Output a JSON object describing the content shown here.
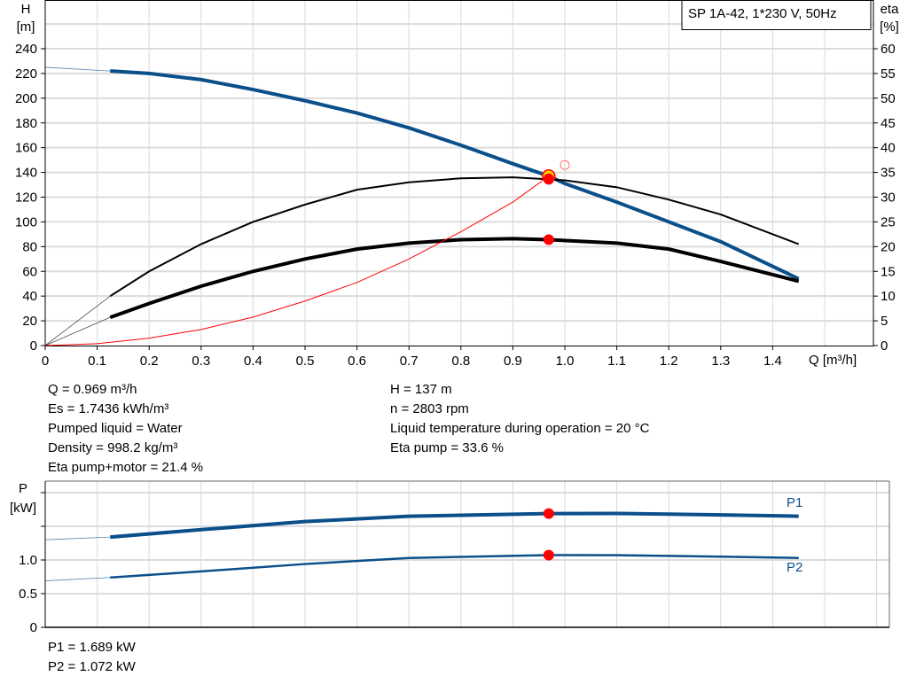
{
  "chart_data": [
    {
      "type": "line",
      "title": "SP 1A-42, 1*230 V, 50Hz",
      "xlabel": "Q [m³/h]",
      "ylabel": [
        "H",
        "[m]"
      ],
      "y2label": [
        "eta",
        "[%]"
      ],
      "xlim": [
        0,
        1.55
      ],
      "ylim": [
        0,
        240
      ],
      "y2lim": [
        0,
        60
      ],
      "xticks": [
        "0",
        "0.1",
        "0.2",
        "0.3",
        "0.4",
        "0.5",
        "0.6",
        "0.7",
        "0.8",
        "0.9",
        "1.0",
        "1.1",
        "1.2",
        "1.3",
        "1.4"
      ],
      "yticks": [
        "0",
        "20",
        "40",
        "60",
        "80",
        "100",
        "120",
        "140",
        "160",
        "180",
        "200",
        "220",
        "240"
      ],
      "y2ticks": [
        "0",
        "5",
        "10",
        "15",
        "20",
        "25",
        "30",
        "35",
        "40",
        "45",
        "50",
        "55",
        "60"
      ],
      "grid": true,
      "series": [
        {
          "id": "H",
          "axis": "left",
          "color": "#0b4f8a",
          "x": [
            0,
            0.125,
            0.2,
            0.3,
            0.4,
            0.5,
            0.6,
            0.7,
            0.8,
            0.9,
            0.969,
            1.0,
            1.1,
            1.2,
            1.3,
            1.45
          ],
          "values": [
            225,
            222,
            220,
            215,
            207,
            198,
            188,
            176,
            162,
            147,
            137,
            131,
            116,
            100,
            84,
            54
          ]
        },
        {
          "id": "eta_pump",
          "axis": "right",
          "color": "#000000",
          "x": [
            0,
            0.125,
            0.2,
            0.3,
            0.4,
            0.5,
            0.6,
            0.7,
            0.8,
            0.9,
            0.969,
            1.0,
            1.1,
            1.2,
            1.3,
            1.45
          ],
          "values": [
            0,
            10,
            15,
            20.5,
            25,
            28.5,
            31.5,
            33,
            33.8,
            34,
            33.6,
            33.4,
            32,
            29.5,
            26.5,
            20.5
          ]
        },
        {
          "id": "eta_pump_motor",
          "axis": "right",
          "color": "#000000",
          "x": [
            0,
            0.125,
            0.2,
            0.3,
            0.4,
            0.5,
            0.6,
            0.7,
            0.8,
            0.9,
            0.969,
            1.1,
            1.2,
            1.3,
            1.45
          ],
          "values": [
            0,
            5.7,
            8.5,
            12,
            15,
            17.5,
            19.5,
            20.7,
            21.4,
            21.6,
            21.4,
            20.7,
            19.5,
            17,
            13
          ]
        },
        {
          "id": "system",
          "axis": "left",
          "color": "#ff0000",
          "x": [
            0,
            0.1,
            0.2,
            0.3,
            0.4,
            0.5,
            0.6,
            0.7,
            0.8,
            0.9,
            0.969
          ],
          "values": [
            0,
            1.5,
            6,
            13,
            23,
            36,
            51,
            70,
            92,
            116,
            137
          ]
        }
      ],
      "points": [
        {
          "x": 0.969,
          "y": 137,
          "axis": "left",
          "kind": "duty"
        },
        {
          "x": 0.969,
          "y": 33.6,
          "axis": "right",
          "kind": "op"
        },
        {
          "x": 0.969,
          "y": 21.4,
          "axis": "right",
          "kind": "op"
        },
        {
          "x": 1.0,
          "y": 146,
          "axis": "left",
          "kind": "requested"
        }
      ]
    },
    {
      "type": "line",
      "ylabel": [
        "P",
        "[kW]"
      ],
      "xlim": [
        0,
        1.62
      ],
      "ylim": [
        0,
        2.2
      ],
      "yticks": [
        "0",
        "0.5",
        "1.0"
      ],
      "grid": true,
      "series": [
        {
          "name": "P1",
          "color": "#0b4f8a",
          "x": [
            0,
            0.125,
            0.3,
            0.5,
            0.7,
            0.969,
            1.1,
            1.3,
            1.45
          ],
          "values": [
            1.3,
            1.34,
            1.45,
            1.57,
            1.65,
            1.689,
            1.69,
            1.67,
            1.65
          ]
        },
        {
          "name": "P2",
          "color": "#0b4f8a",
          "x": [
            0,
            0.125,
            0.3,
            0.5,
            0.7,
            0.969,
            1.1,
            1.3,
            1.45
          ],
          "values": [
            0.69,
            0.74,
            0.83,
            0.94,
            1.03,
            1.072,
            1.07,
            1.05,
            1.03
          ]
        }
      ],
      "points": [
        {
          "x": 0.969,
          "y": 1.689
        },
        {
          "x": 0.969,
          "y": 1.072
        }
      ]
    }
  ],
  "readout": {
    "left": [
      "Q = 0.969 m³/h",
      "Es = 1.7436 kWh/m³",
      "Pumped liquid = Water",
      "Density = 998.2 kg/m³",
      "Eta pump+motor = 21.4 %"
    ],
    "right": [
      "H = 137 m",
      "n = 2803 rpm",
      "Liquid temperature during operation = 20 °C",
      "Eta pump = 33.6 %"
    ],
    "power": [
      "P1 = 1.689 kW",
      "P2 = 1.072 kW"
    ]
  }
}
